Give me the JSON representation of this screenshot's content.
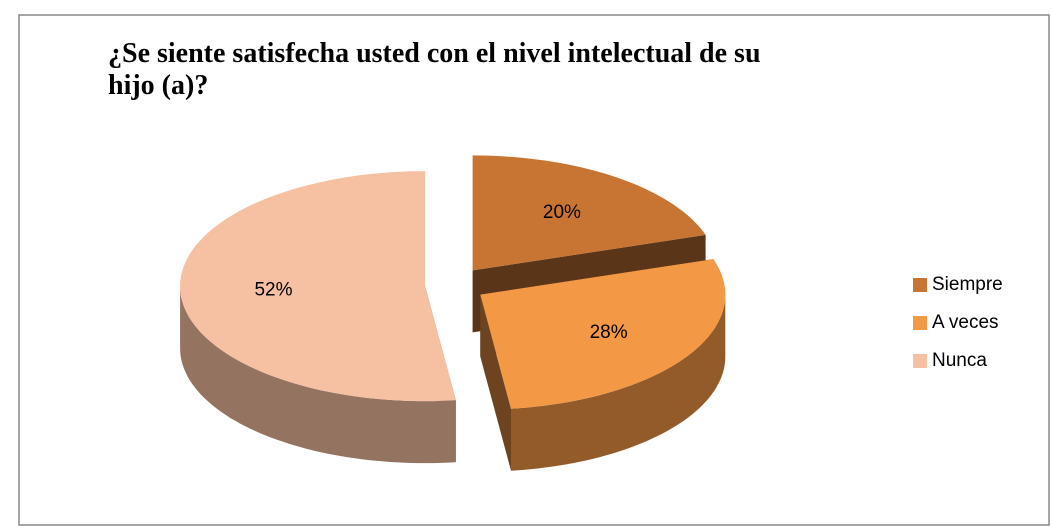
{
  "chart_data": {
    "type": "pie",
    "title": "¿Se siente satisfecha usted con el nivel intelectual de su hijo (a)?",
    "categories": [
      "Siempre",
      "A veces",
      "Nunca"
    ],
    "values": [
      20,
      28,
      52
    ],
    "value_labels": [
      "20%",
      "28%",
      "52%"
    ],
    "colors": [
      "#c87533",
      "#f39845",
      "#f6c0a2"
    ],
    "legend": "right"
  }
}
